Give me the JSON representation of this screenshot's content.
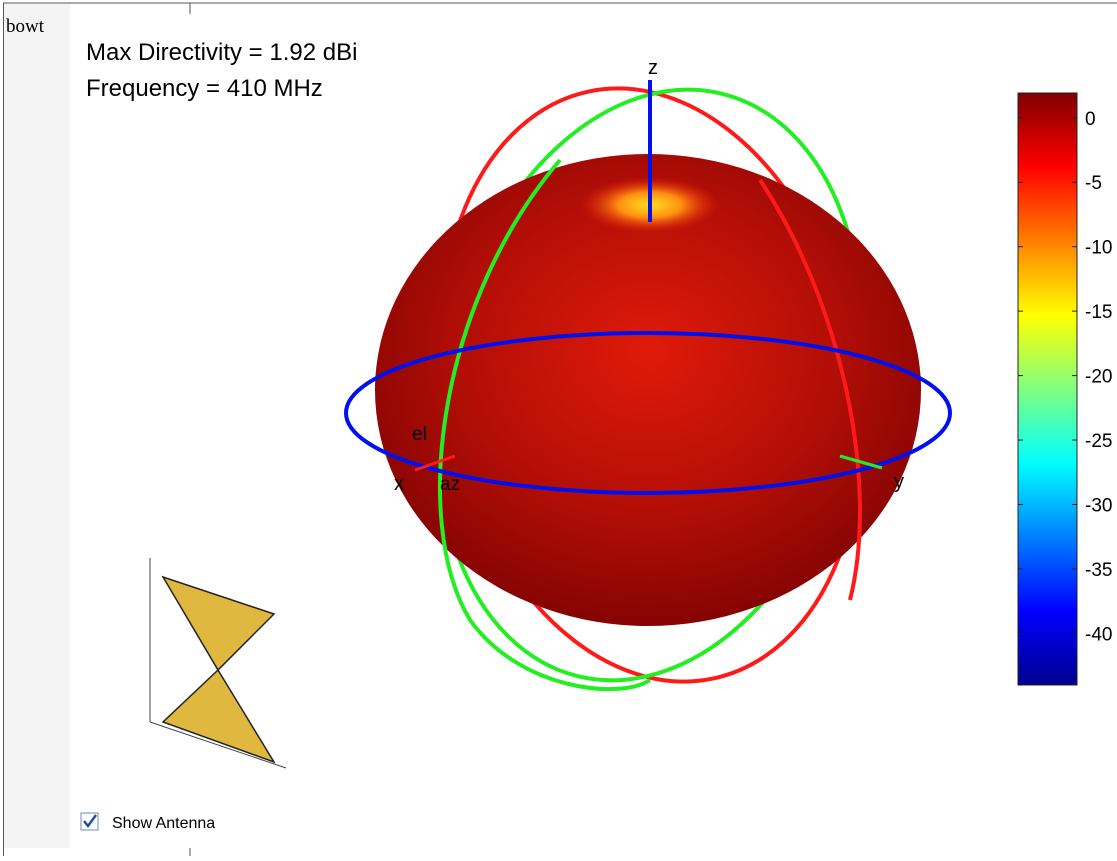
{
  "window": {
    "title": "bowt"
  },
  "plot": {
    "annotation": [
      "Max Directivity = 1.92 dBi",
      "Frequency = 410 MHz"
    ],
    "axes": {
      "z": "z",
      "x": "x",
      "y": "y",
      "el": "el",
      "az": "az"
    },
    "colorbar": {
      "lim": [
        -44,
        1.92
      ],
      "ticks": [
        0,
        -5,
        -10,
        -15,
        -20,
        -25,
        -30,
        -35,
        -40
      ]
    }
  },
  "controls": {
    "checkbox": {
      "label": "Show Antenna",
      "checked": true
    }
  }
}
